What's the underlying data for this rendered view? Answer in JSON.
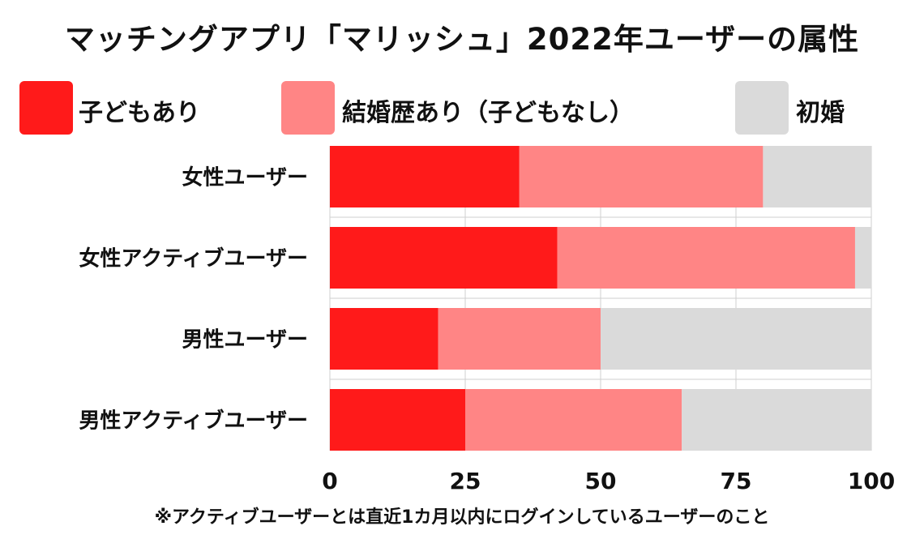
{
  "title": "マッチングアプリ「マリッシュ」2022年ユーザーの属性",
  "footnote": "※アクティブユーザーとは直近1カ月以内にログインしているユーザーのこと",
  "legend": [
    {
      "label": "子どもあり",
      "color": "#FF1A1A"
    },
    {
      "label": "結婚歴あり（子どもなし）",
      "color": "#FF8585"
    },
    {
      "label": "初婚",
      "color": "#DADADA"
    }
  ],
  "chart_data": {
    "type": "bar",
    "orientation": "horizontal",
    "stacked": true,
    "categories": [
      "女性ユーザー",
      "女性アクティブユーザー",
      "男性ユーザー",
      "男性アクティブユーザー"
    ],
    "series": [
      {
        "name": "子どもあり",
        "color": "#FF1A1A",
        "values": [
          35,
          42,
          20,
          25
        ]
      },
      {
        "name": "結婚歴あり（子どもなし）",
        "color": "#FF8585",
        "values": [
          45,
          55,
          30,
          40
        ]
      },
      {
        "name": "初婚",
        "color": "#DADADA",
        "values": [
          20,
          3,
          50,
          35
        ]
      }
    ],
    "xlim": [
      0,
      100
    ],
    "xticks": [
      "0",
      "25",
      "50",
      "75",
      "100"
    ],
    "grid": true,
    "legend_position": "top"
  }
}
